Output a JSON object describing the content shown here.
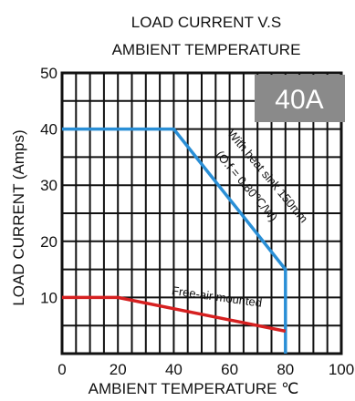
{
  "chart_data": {
    "type": "line",
    "title": [
      "LOAD CURRENT V.S",
      "AMBIENT TEMPERATURE"
    ],
    "xlabel": "AMBIENT TEMPERATURE ℃",
    "ylabel": "LOAD CURRENT (Amps)",
    "xlim": [
      0,
      100
    ],
    "ylim": [
      0,
      50
    ],
    "x_ticks": [
      0,
      20,
      40,
      60,
      80,
      100
    ],
    "y_ticks": [
      10,
      20,
      30,
      40,
      50
    ],
    "grid": true,
    "badge": "40A",
    "series": [
      {
        "name": "With heat sink 150mm (O.f = 0.80℃/W)",
        "name_lines": [
          "With heat sink 150mm",
          "(O.f = 0.80℃/W)"
        ],
        "color": "#2a8fd6",
        "x": [
          0,
          40,
          80,
          80
        ],
        "y": [
          40,
          40,
          15,
          0
        ]
      },
      {
        "name": "Free-air mounted",
        "color": "#d62020",
        "x": [
          0,
          20,
          80
        ],
        "y": [
          10,
          10,
          4
        ]
      }
    ]
  },
  "colors": {
    "grid": "#111111",
    "badge_fill": "#8a8a8a"
  }
}
